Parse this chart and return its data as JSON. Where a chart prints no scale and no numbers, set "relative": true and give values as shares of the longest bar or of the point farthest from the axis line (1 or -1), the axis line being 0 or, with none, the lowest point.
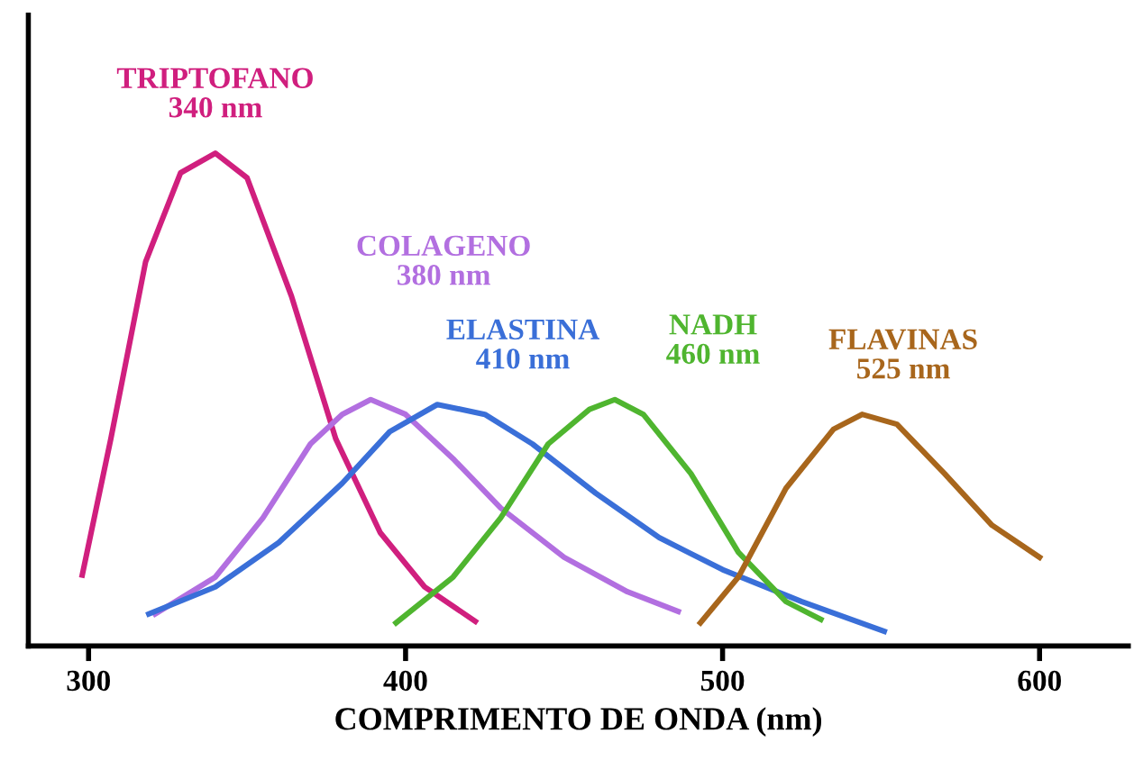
{
  "chart_data": {
    "type": "line",
    "xlabel": "COMPRIMENTO DE ONDA (nm)",
    "relative": true,
    "xlim": [
      281,
      628
    ],
    "xticks": [
      300,
      400,
      500,
      600
    ],
    "grid": false,
    "legend": false,
    "marker": "none",
    "line_style": "solid",
    "series": [
      {
        "name": "TRIPTOFANO\n340 nm",
        "color": "#d01f7e",
        "x": [
          298,
          307,
          318,
          329,
          340,
          350,
          364,
          378,
          392,
          406,
          422
        ],
        "values": [
          0.144,
          0.42,
          0.78,
          0.96,
          1,
          0.95,
          0.71,
          0.42,
          0.23,
          0.12,
          0.05
        ]
      },
      {
        "name": "COLAGENO\n380 nm",
        "color": "#b26fe0",
        "x": [
          321,
          340,
          355,
          370,
          380,
          389,
          400,
          415,
          430,
          450,
          470,
          486
        ],
        "values": [
          0.065,
          0.14,
          0.26,
          0.41,
          0.47,
          0.5,
          0.47,
          0.38,
          0.28,
          0.18,
          0.11,
          0.07
        ]
      },
      {
        "name": "ELASTINA\n410 nm",
        "color": "#3a6fd8",
        "x": [
          319,
          340,
          360,
          380,
          395,
          410,
          425,
          440,
          460,
          480,
          500,
          525,
          551
        ],
        "values": [
          0.065,
          0.12,
          0.21,
          0.33,
          0.435,
          0.49,
          0.47,
          0.41,
          0.31,
          0.22,
          0.155,
          0.09,
          0.03
        ]
      },
      {
        "name": "NADH\n460 nm",
        "color": "#4fb52f",
        "x": [
          397,
          415,
          430,
          445,
          458,
          466,
          475,
          490,
          505,
          520,
          531
        ],
        "values": [
          0.047,
          0.14,
          0.26,
          0.41,
          0.48,
          0.5,
          0.47,
          0.35,
          0.19,
          0.09,
          0.054
        ]
      },
      {
        "name": "FLAVINAS\n525 nm",
        "color": "#a8661c",
        "x": [
          493,
          505,
          520,
          535,
          544,
          555,
          570,
          585,
          600
        ],
        "values": [
          0.047,
          0.14,
          0.32,
          0.44,
          0.47,
          0.45,
          0.35,
          0.245,
          0.18
        ]
      }
    ]
  }
}
